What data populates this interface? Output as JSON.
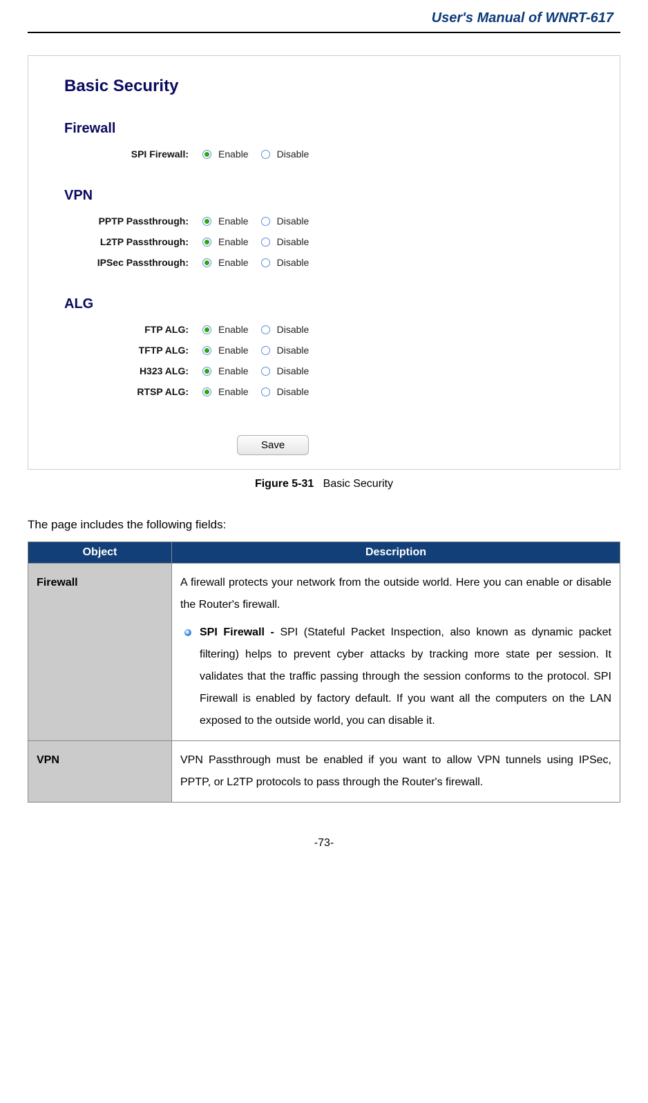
{
  "header": {
    "title": "User's Manual of WNRT-617"
  },
  "screenshot": {
    "title": "Basic Security",
    "sections": [
      {
        "name": "Firewall",
        "rows": [
          {
            "label": "SPI Firewall:",
            "enable": "Enable",
            "disable": "Disable",
            "selected": "enable"
          }
        ]
      },
      {
        "name": "VPN",
        "rows": [
          {
            "label": "PPTP Passthrough:",
            "enable": "Enable",
            "disable": "Disable",
            "selected": "enable"
          },
          {
            "label": "L2TP Passthrough:",
            "enable": "Enable",
            "disable": "Disable",
            "selected": "enable"
          },
          {
            "label": "IPSec Passthrough:",
            "enable": "Enable",
            "disable": "Disable",
            "selected": "enable"
          }
        ]
      },
      {
        "name": "ALG",
        "rows": [
          {
            "label": "FTP ALG:",
            "enable": "Enable",
            "disable": "Disable",
            "selected": "enable"
          },
          {
            "label": "TFTP ALG:",
            "enable": "Enable",
            "disable": "Disable",
            "selected": "enable"
          },
          {
            "label": "H323 ALG:",
            "enable": "Enable",
            "disable": "Disable",
            "selected": "enable"
          },
          {
            "label": "RTSP ALG:",
            "enable": "Enable",
            "disable": "Disable",
            "selected": "enable"
          }
        ]
      }
    ],
    "save_label": "Save"
  },
  "caption": {
    "fig": "Figure 5-31",
    "text": "Basic Security"
  },
  "intro": "The page includes the following fields:",
  "table": {
    "headers": {
      "object": "Object",
      "description": "Description"
    },
    "rows": [
      {
        "object": "Firewall",
        "desc_intro": "A firewall protects your network from the outside world. Here you can enable or disable the Router's firewall.",
        "bullet_label": "SPI Firewall -",
        "bullet_text": " SPI (Stateful Packet Inspection, also known as dynamic packet filtering) helps to prevent cyber attacks by tracking more state per session. It validates that the traffic passing through the session conforms to the protocol. SPI Firewall is enabled by factory default. If you want all the computers on the LAN exposed to the outside world, you can disable it."
      },
      {
        "object": "VPN",
        "desc_intro": "VPN Passthrough must be enabled if you want to allow VPN tunnels using IPSec, PPTP, or L2TP protocols to pass through the Router's firewall."
      }
    ]
  },
  "footer": "-73-"
}
